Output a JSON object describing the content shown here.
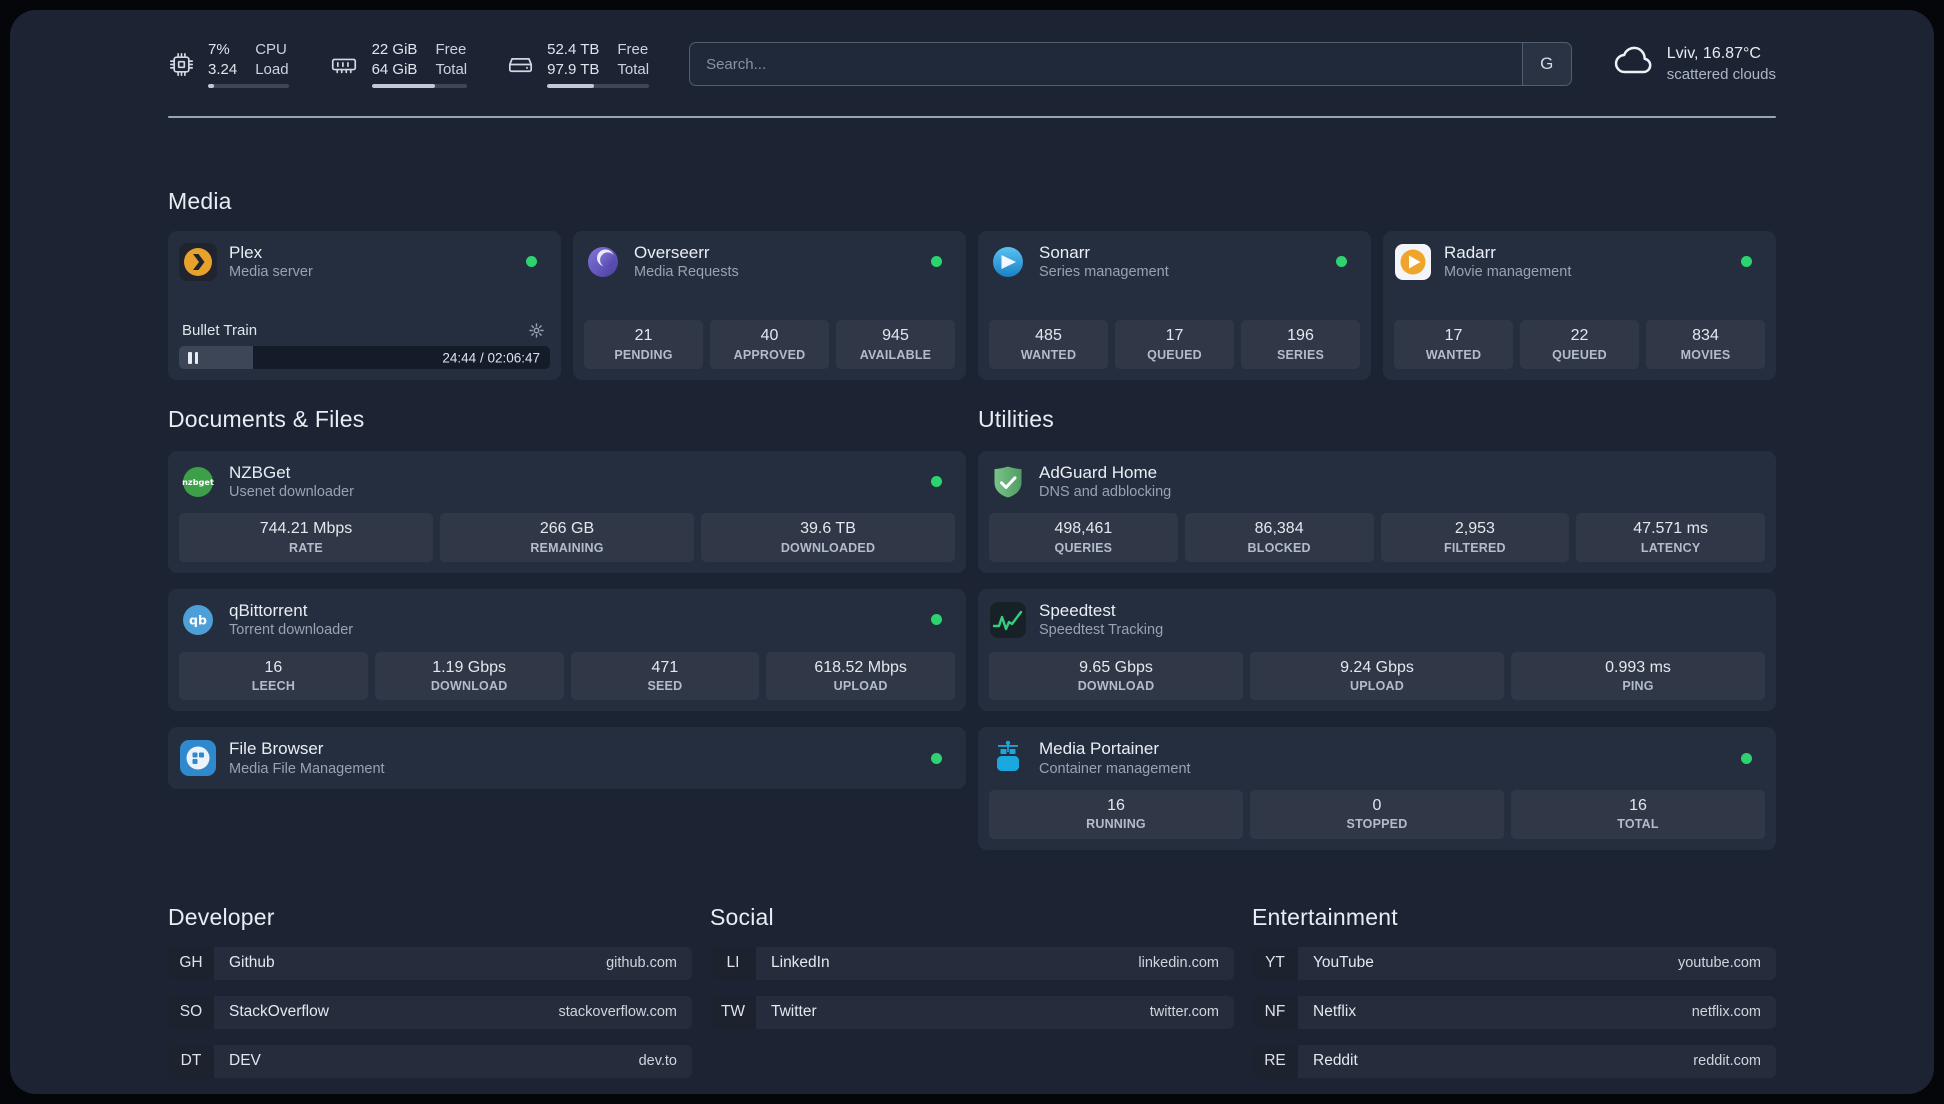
{
  "topbar": {
    "cpu": {
      "percent": "7%",
      "load": "3.24",
      "label_top": "CPU",
      "label_bottom": "Load",
      "usage_percent": 7
    },
    "memory": {
      "free": "22 GiB",
      "total": "64 GiB",
      "label_top": "Free",
      "label_bottom": "Total",
      "usage_percent": 66
    },
    "disk": {
      "free": "52.4 TB",
      "total": "97.9 TB",
      "label_top": "Free",
      "label_bottom": "Total",
      "usage_percent": 46
    },
    "search": {
      "placeholder": "Search...",
      "provider": "G"
    },
    "weather": {
      "location": "Lviv, 16.87°C",
      "condition": "scattered clouds"
    }
  },
  "sections": {
    "media": {
      "title": "Media"
    },
    "documents": {
      "title": "Documents & Files"
    },
    "utilities": {
      "title": "Utilities"
    },
    "developer": {
      "title": "Developer"
    },
    "social": {
      "title": "Social"
    },
    "entertainment": {
      "title": "Entertainment"
    }
  },
  "services": {
    "plex": {
      "name": "Plex",
      "subtitle": "Media server",
      "now_playing": "Bullet Train",
      "time": "24:44 / 02:06:47",
      "progress_percent": 20
    },
    "overseerr": {
      "name": "Overseerr",
      "subtitle": "Media Requests",
      "stats": [
        {
          "value": "21",
          "label": "PENDING"
        },
        {
          "value": "40",
          "label": "APPROVED"
        },
        {
          "value": "945",
          "label": "AVAILABLE"
        }
      ]
    },
    "sonarr": {
      "name": "Sonarr",
      "subtitle": "Series management",
      "stats": [
        {
          "value": "485",
          "label": "WANTED"
        },
        {
          "value": "17",
          "label": "QUEUED"
        },
        {
          "value": "196",
          "label": "SERIES"
        }
      ]
    },
    "radarr": {
      "name": "Radarr",
      "subtitle": "Movie management",
      "stats": [
        {
          "value": "17",
          "label": "WANTED"
        },
        {
          "value": "22",
          "label": "QUEUED"
        },
        {
          "value": "834",
          "label": "MOVIES"
        }
      ]
    },
    "nzbget": {
      "name": "NZBGet",
      "subtitle": "Usenet downloader",
      "stats": [
        {
          "value": "744.21 Mbps",
          "label": "RATE"
        },
        {
          "value": "266 GB",
          "label": "REMAINING"
        },
        {
          "value": "39.6 TB",
          "label": "DOWNLOADED"
        }
      ]
    },
    "qbittorrent": {
      "name": "qBittorrent",
      "subtitle": "Torrent downloader",
      "stats": [
        {
          "value": "16",
          "label": "LEECH"
        },
        {
          "value": "1.19 Gbps",
          "label": "DOWNLOAD"
        },
        {
          "value": "471",
          "label": "SEED"
        },
        {
          "value": "618.52 Mbps",
          "label": "UPLOAD"
        }
      ]
    },
    "filebrowser": {
      "name": "File Browser",
      "subtitle": "Media File Management"
    },
    "adguard": {
      "name": "AdGuard Home",
      "subtitle": "DNS and adblocking",
      "stats": [
        {
          "value": "498,461",
          "label": "QUERIES"
        },
        {
          "value": "86,384",
          "label": "BLOCKED"
        },
        {
          "value": "2,953",
          "label": "FILTERED"
        },
        {
          "value": "47.571 ms",
          "label": "LATENCY"
        }
      ]
    },
    "speedtest": {
      "name": "Speedtest",
      "subtitle": "Speedtest Tracking",
      "stats": [
        {
          "value": "9.65 Gbps",
          "label": "DOWNLOAD"
        },
        {
          "value": "9.24 Gbps",
          "label": "UPLOAD"
        },
        {
          "value": "0.993 ms",
          "label": "PING"
        }
      ]
    },
    "portainer": {
      "name": "Media Portainer",
      "subtitle": "Container management",
      "stats": [
        {
          "value": "16",
          "label": "RUNNING"
        },
        {
          "value": "0",
          "label": "STOPPED"
        },
        {
          "value": "16",
          "label": "TOTAL"
        }
      ]
    }
  },
  "bookmarks": {
    "developer": [
      {
        "abbr": "GH",
        "name": "Github",
        "url": "github.com"
      },
      {
        "abbr": "SO",
        "name": "StackOverflow",
        "url": "stackoverflow.com"
      },
      {
        "abbr": "DT",
        "name": "DEV",
        "url": "dev.to"
      }
    ],
    "social": [
      {
        "abbr": "LI",
        "name": "LinkedIn",
        "url": "linkedin.com"
      },
      {
        "abbr": "TW",
        "name": "Twitter",
        "url": "twitter.com"
      }
    ],
    "entertainment": [
      {
        "abbr": "YT",
        "name": "YouTube",
        "url": "youtube.com"
      },
      {
        "abbr": "NF",
        "name": "Netflix",
        "url": "netflix.com"
      },
      {
        "abbr": "RE",
        "name": "Reddit",
        "url": "reddit.com"
      }
    ]
  },
  "colors": {
    "status_online": "#2dd36f"
  }
}
